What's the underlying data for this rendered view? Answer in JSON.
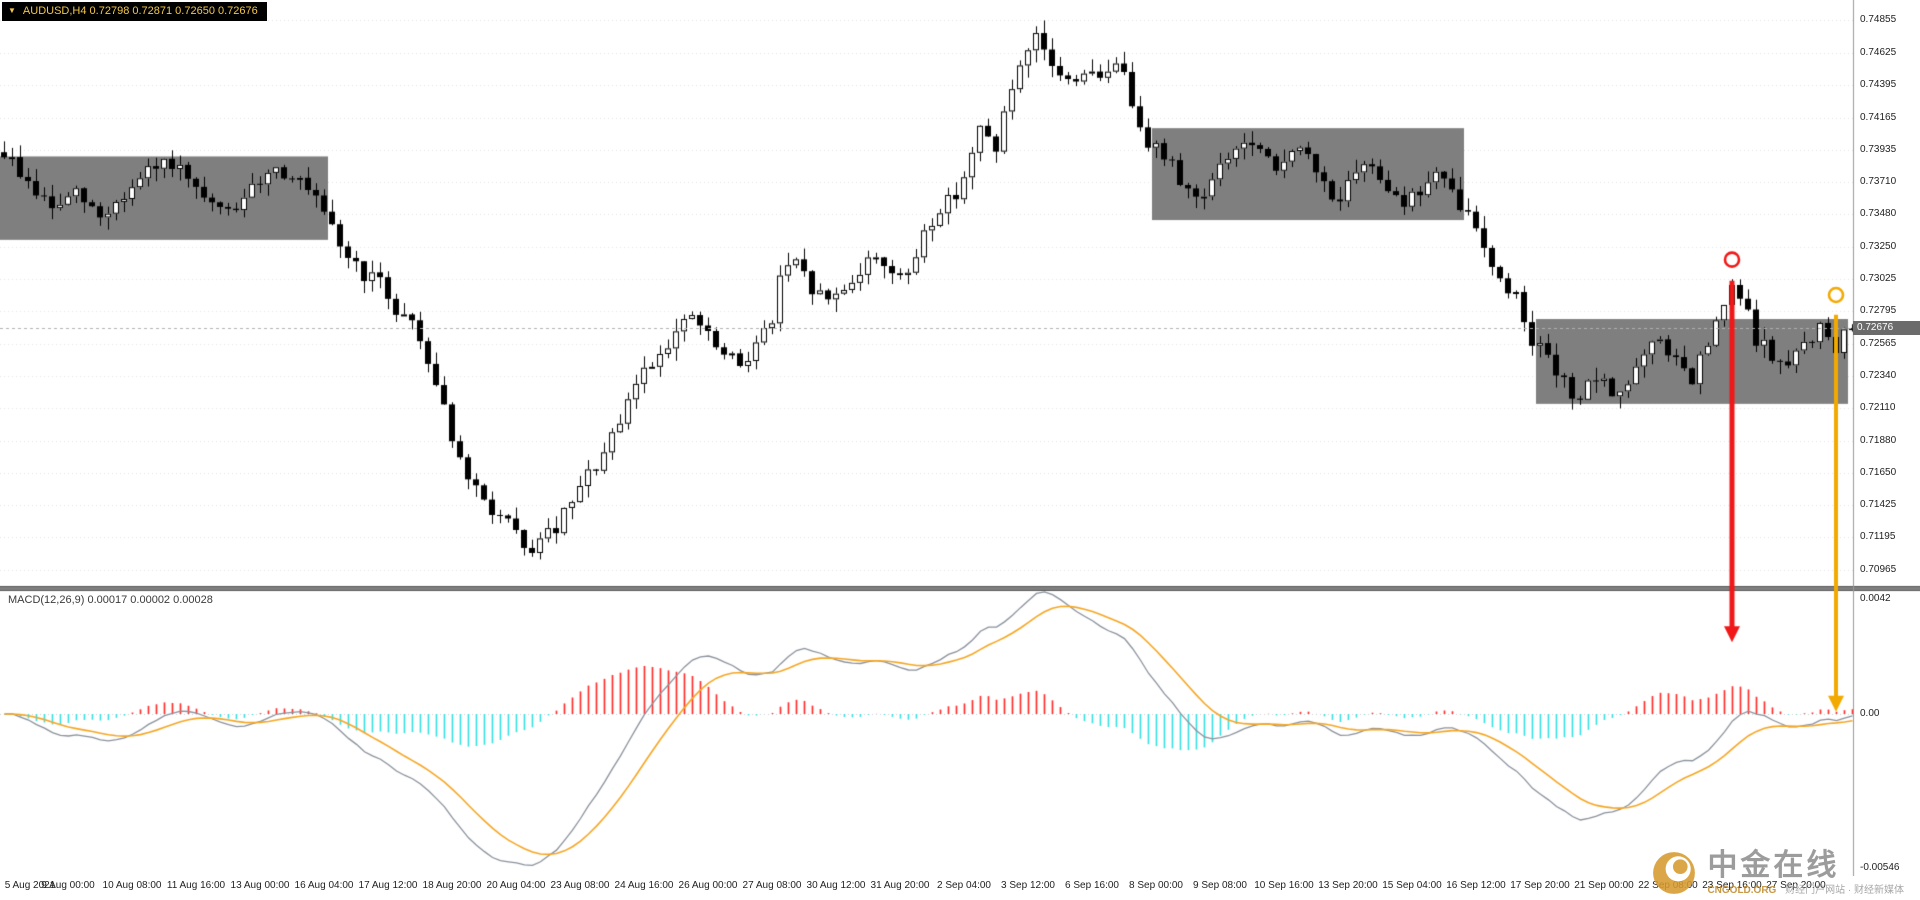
{
  "header": {
    "marker": "▼",
    "symbol_line": "AUDUSD,H4  0.72798 0.72871 0.72650 0.72676"
  },
  "price_axis": {
    "labels": [
      "0.74855",
      "0.74625",
      "0.74395",
      "0.74165",
      "0.73935",
      "0.73710",
      "0.73480",
      "0.73250",
      "0.73025",
      "0.72795",
      "0.72565",
      "0.72340",
      "0.72110",
      "0.71880",
      "0.71650",
      "0.71425",
      "0.71195",
      "0.70965"
    ],
    "current": "0.72676"
  },
  "macd": {
    "label": "MACD(12,26,9) 0.00017 0.00002 0.00028",
    "axis": {
      "top": "0.0042",
      "zero": "0.00",
      "bottom": "-0.00546"
    },
    "params": {
      "fast": 12,
      "slow": 26,
      "signal": 9
    }
  },
  "time_axis": {
    "labels": [
      "5 Aug 2021",
      "9 Aug 00:00",
      "10 Aug 08:00",
      "11 Aug 16:00",
      "13 Aug 00:00",
      "16 Aug 04:00",
      "17 Aug 12:00",
      "18 Aug 20:00",
      "20 Aug 04:00",
      "23 Aug 08:00",
      "24 Aug 16:00",
      "26 Aug 00:00",
      "27 Aug 08:00",
      "30 Aug 12:00",
      "31 Aug 20:00",
      "2 Sep 04:00",
      "3 Sep 12:00",
      "6 Sep 16:00",
      "8 Sep 00:00",
      "9 Sep 08:00",
      "10 Sep 16:00",
      "13 Sep 20:00",
      "15 Sep 04:00",
      "16 Sep 12:00",
      "17 Sep 20:00",
      "21 Sep 00:00",
      "22 Sep 08:00",
      "23 Sep 16:00",
      "27 Sep 20:00"
    ]
  },
  "watermark": {
    "title": "中金在线",
    "subtitle": "CNGOLD.ORG",
    "caption": "财经门户网站 · 财经新媒体"
  },
  "colors": {
    "up_fill": "#ffffff",
    "down_fill": "#000000",
    "outline": "#000000",
    "box": "#7f7f7f",
    "hist_pos": "#ff2e2e",
    "hist_neg": "#3fdede",
    "macd_line": "#8a919c",
    "signal_line": "#f5a623",
    "grid": "#e4e4e4",
    "divider": "#7f7f7f",
    "axis_line": "#999999",
    "price_line": "#b0b0b0",
    "badge_bg": "#6b6b6b",
    "logo_gold": "#d79a2e"
  },
  "chart_data": {
    "type": "candlestick",
    "symbol": "AUDUSD",
    "timeframe": "H4",
    "ohlc_display": {
      "open": 0.72798,
      "high": 0.72871,
      "low": 0.7265,
      "close": 0.72676
    },
    "price_range": [
      0.70965,
      0.74855
    ],
    "indicator": "MACD(12,26,9) with OSMA histogram (red positive / cyan negative)",
    "macd_range": [
      -0.00546,
      0.0042
    ],
    "candles": {
      "count": 232,
      "seed": 9,
      "noise": 0.0006,
      "wick": 0.0009,
      "last_close": 0.72676,
      "price_keypoints": [
        [
          0,
          0.7392
        ],
        [
          3,
          0.737
        ],
        [
          6,
          0.7352
        ],
        [
          9,
          0.7362
        ],
        [
          12,
          0.7346
        ],
        [
          15,
          0.7361
        ],
        [
          18,
          0.7377
        ],
        [
          21,
          0.7385
        ],
        [
          24,
          0.7362
        ],
        [
          27,
          0.7349
        ],
        [
          30,
          0.7356
        ],
        [
          33,
          0.7381
        ],
        [
          36,
          0.7377
        ],
        [
          39,
          0.7356
        ],
        [
          41,
          0.7336
        ],
        [
          43,
          0.7318
        ],
        [
          45,
          0.7306
        ],
        [
          47,
          0.7299
        ],
        [
          49,
          0.7281
        ],
        [
          51,
          0.7273
        ],
        [
          53,
          0.7246
        ],
        [
          55,
          0.7213
        ],
        [
          57,
          0.7171
        ],
        [
          59,
          0.7151
        ],
        [
          61,
          0.7139
        ],
        [
          63,
          0.7129
        ],
        [
          65,
          0.7109
        ],
        [
          67,
          0.7116
        ],
        [
          69,
          0.7126
        ],
        [
          71,
          0.7143
        ],
        [
          73,
          0.7163
        ],
        [
          75,
          0.7178
        ],
        [
          77,
          0.7198
        ],
        [
          79,
          0.723
        ],
        [
          81,
          0.7244
        ],
        [
          83,
          0.7259
        ],
        [
          85,
          0.7269
        ],
        [
          86,
          0.7277
        ],
        [
          88,
          0.7261
        ],
        [
          90,
          0.7247
        ],
        [
          92,
          0.7242
        ],
        [
          94,
          0.7257
        ],
        [
          96,
          0.7272
        ],
        [
          97,
          0.7304
        ],
        [
          99,
          0.7312
        ],
        [
          101,
          0.7295
        ],
        [
          103,
          0.7287
        ],
        [
          105,
          0.7297
        ],
        [
          107,
          0.7308
        ],
        [
          109,
          0.7319
        ],
        [
          111,
          0.7309
        ],
        [
          113,
          0.7301
        ],
        [
          115,
          0.7337
        ],
        [
          117,
          0.7351
        ],
        [
          119,
          0.7364
        ],
        [
          121,
          0.7389
        ],
        [
          122,
          0.7407
        ],
        [
          124,
          0.7397
        ],
        [
          126,
          0.7437
        ],
        [
          128,
          0.7459
        ],
        [
          129,
          0.7471
        ],
        [
          131,
          0.7454
        ],
        [
          133,
          0.7441
        ],
        [
          135,
          0.745
        ],
        [
          137,
          0.7441
        ],
        [
          139,
          0.7459
        ],
        [
          141,
          0.7429
        ],
        [
          143,
          0.7401
        ],
        [
          145,
          0.7389
        ],
        [
          147,
          0.7374
        ],
        [
          149,
          0.7359
        ],
        [
          151,
          0.7371
        ],
        [
          153,
          0.7389
        ],
        [
          155,
          0.7399
        ],
        [
          157,
          0.7391
        ],
        [
          159,
          0.7377
        ],
        [
          161,
          0.7397
        ],
        [
          163,
          0.7387
        ],
        [
          165,
          0.7369
        ],
        [
          167,
          0.7359
        ],
        [
          169,
          0.7374
        ],
        [
          171,
          0.7384
        ],
        [
          173,
          0.7369
        ],
        [
          175,
          0.7357
        ],
        [
          177,
          0.7364
        ],
        [
          179,
          0.7377
        ],
        [
          181,
          0.7361
        ],
        [
          183,
          0.7347
        ],
        [
          185,
          0.7329
        ],
        [
          187,
          0.7299
        ],
        [
          189,
          0.7291
        ],
        [
          191,
          0.7261
        ],
        [
          193,
          0.7244
        ],
        [
          195,
          0.7227
        ],
        [
          197,
          0.7219
        ],
        [
          199,
          0.7231
        ],
        [
          201,
          0.7221
        ],
        [
          203,
          0.7229
        ],
        [
          205,
          0.7247
        ],
        [
          207,
          0.7259
        ],
        [
          209,
          0.7244
        ],
        [
          211,
          0.7229
        ],
        [
          213,
          0.7257
        ],
        [
          215,
          0.7281
        ],
        [
          216,
          0.7297
        ],
        [
          217,
          0.7289
        ],
        [
          219,
          0.7261
        ],
        [
          221,
          0.7247
        ],
        [
          223,
          0.7239
        ],
        [
          225,
          0.7257
        ],
        [
          227,
          0.7267
        ],
        [
          229,
          0.7254
        ],
        [
          230,
          0.7261
        ],
        [
          231,
          0.72676
        ]
      ]
    },
    "rectangles": [
      {
        "from_idx": 0,
        "to_idx": 40,
        "top_price": 0.7389,
        "bottom_price": 0.733
      },
      {
        "from_idx": 144,
        "to_idx": 182,
        "top_price": 0.7409,
        "bottom_price": 0.7344
      },
      {
        "from_idx": 192,
        "to_idx": 230,
        "top_price": 0.7274,
        "bottom_price": 0.7214
      }
    ],
    "arrows": [
      {
        "name": "red-sell-arrow",
        "color": "#f01818",
        "idx": 216,
        "circle_price": 0.7316,
        "shaft_top_price": 0.7301,
        "tip_value": 0.0026,
        "shaft_width": 5
      },
      {
        "name": "yellow-sell-arrow",
        "color": "#f2a900",
        "idx": 229,
        "circle_price": 0.7291,
        "shaft_top_price": 0.7277,
        "tip_value": 8e-05,
        "shaft_width": 4
      }
    ]
  }
}
